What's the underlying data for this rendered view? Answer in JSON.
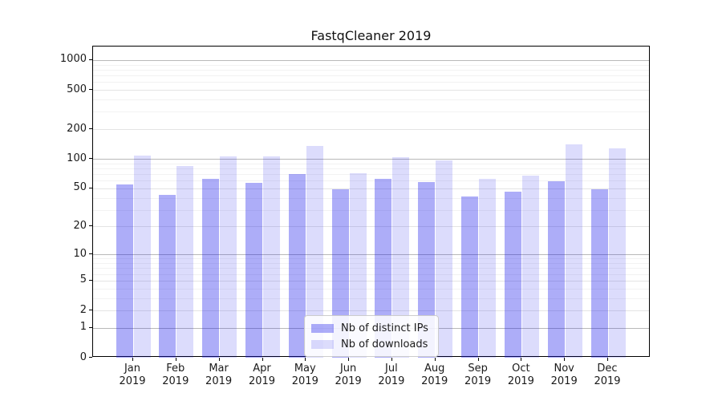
{
  "chart_data": {
    "type": "bar",
    "title": "FastqCleaner 2019",
    "months": [
      "Jan",
      "Feb",
      "Mar",
      "Apr",
      "May",
      "Jun",
      "Jul",
      "Aug",
      "Sep",
      "Oct",
      "Nov",
      "Dec"
    ],
    "year": "2019",
    "series": [
      {
        "name": "Nb of distinct IPs",
        "color": "rgba(20,20,235,0.35)",
        "values": [
          55,
          43,
          63,
          57,
          70,
          49,
          63,
          58,
          41,
          46,
          59,
          49
        ]
      },
      {
        "name": "Nb of downloads",
        "color": "rgba(20,20,235,0.15)",
        "values": [
          109,
          84,
          107,
          107,
          135,
          72,
          104,
          96,
          63,
          68,
          141,
          128
        ]
      }
    ],
    "y_scale": "log1p",
    "y_ticks": [
      0,
      1,
      2,
      5,
      10,
      20,
      50,
      100,
      200,
      500,
      1000
    ],
    "y_ticks_major": [
      1,
      10,
      100,
      1000
    ],
    "y_ticks_mid": [
      2,
      5,
      20,
      50,
      200,
      500
    ],
    "ylim": [
      0,
      1370
    ],
    "grid": true,
    "legend_position": "lower center",
    "colors": {
      "grid_major": "#b9b9b9",
      "grid_mid": "#e4e4e4",
      "grid_minor": "#f2f2f2",
      "spine": "#000000",
      "text": "#1a1a1a"
    }
  }
}
